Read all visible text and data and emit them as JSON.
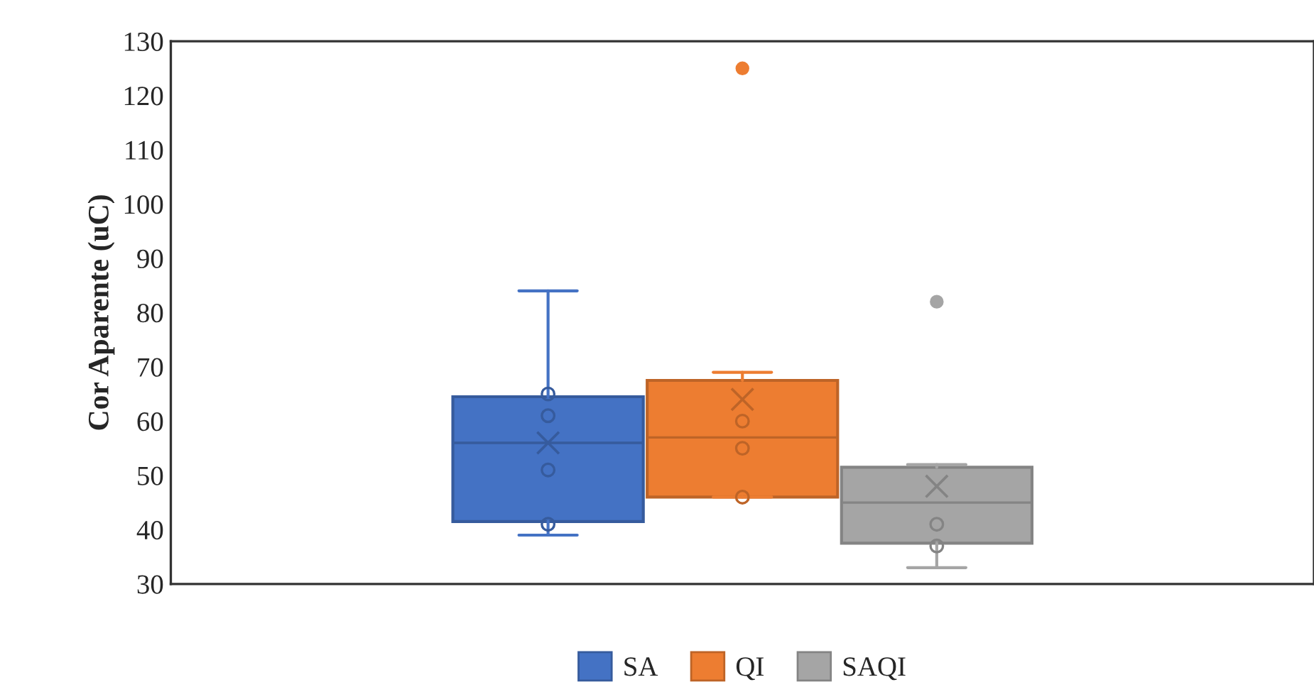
{
  "chart_data": {
    "type": "box",
    "ylabel": "Cor Aparente (uC)",
    "categories": [
      null
    ],
    "ylim": [
      30,
      130
    ],
    "yticks": [
      30,
      40,
      50,
      60,
      70,
      80,
      90,
      100,
      110,
      120,
      130
    ],
    "tick_labels": "y",
    "grid": false,
    "legend": "bottom",
    "series": [
      {
        "name": "SA",
        "color": "#4472c4",
        "boxes": [
          {
            "low": 39,
            "q1": 41.5,
            "median": 56,
            "q3": 64.5,
            "high": 84,
            "mean": 56
          }
        ]
      },
      {
        "type": "scatter",
        "color": "#365b9d",
        "marker": "circle",
        "x": [
          null,
          null,
          null,
          null
        ],
        "values": [
          65,
          61,
          51,
          41
        ]
      },
      {
        "name": "QI",
        "color": "#ed7d31",
        "boxes": [
          {
            "low": 46,
            "q1": 46,
            "median": 57,
            "q3": 67.5,
            "high": 69,
            "mean": 64,
            "outliers": [
              125
            ]
          }
        ]
      },
      {
        "type": "scatter",
        "color": "#be6427",
        "marker": "circle",
        "x": [
          null,
          null,
          null
        ],
        "values": [
          60,
          55,
          46
        ]
      },
      {
        "name": "SAQI",
        "color": "#a5a5a5",
        "boxes": [
          {
            "low": 33,
            "q1": 37.5,
            "median": 45,
            "q3": 51.5,
            "high": 52,
            "mean": 48,
            "outliers": [
              82
            ]
          }
        ]
      },
      {
        "type": "scatter",
        "color": "#848484",
        "marker": "circle",
        "x": [
          null,
          null
        ],
        "values": [
          41,
          37
        ]
      }
    ]
  }
}
